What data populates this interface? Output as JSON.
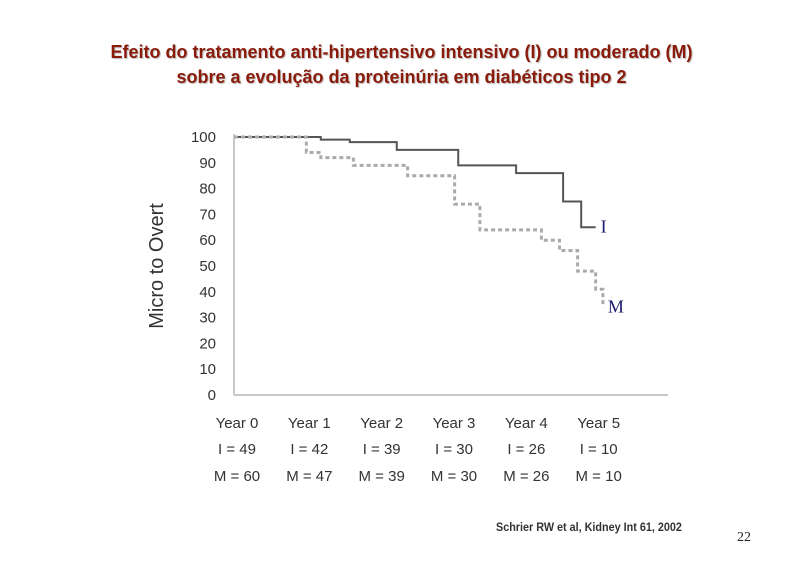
{
  "slide": {
    "title_line1": "Efeito do tratamento anti-hipertensivo intensivo (I) ou moderado (M)",
    "title_line2": "sobre a evolução da proteinúria em diabéticos tipo 2",
    "citation": "Schrier RW et al, Kidney Int 61, 2002",
    "page_number": "22"
  },
  "chart_data": {
    "type": "line",
    "title": "",
    "xlabel": "",
    "ylabel": "Micro to Overt",
    "ylim": [
      0,
      100
    ],
    "xlim": [
      0,
      6
    ],
    "yticks": [
      0,
      10,
      20,
      30,
      40,
      50,
      60,
      70,
      80,
      90,
      100
    ],
    "categories": [
      "Year 0",
      "Year 1",
      "Year 2",
      "Year 3",
      "Year 4",
      "Year 5"
    ],
    "risk_table": [
      {
        "group": "I",
        "counts": [
          "I = 49",
          "I = 42",
          "I = 39",
          "I = 30",
          "I = 26",
          "I = 10"
        ]
      },
      {
        "group": "M",
        "counts": [
          "M = 60",
          "M = 47",
          "M = 39",
          "M = 30",
          "M = 26",
          "M = 10"
        ]
      }
    ],
    "series": [
      {
        "name": "I",
        "style": "solid",
        "color": "#555555",
        "label_color": "#1a1a6e",
        "x": [
          0,
          1.2,
          1.6,
          2.25,
          3.1,
          3.9,
          4.55,
          4.8,
          5.0
        ],
        "y": [
          100,
          99,
          98,
          95,
          89,
          86,
          75,
          65,
          65
        ]
      },
      {
        "name": "M",
        "style": "dashed",
        "color": "#aaaaaa",
        "label_color": "#1a1a6e",
        "x": [
          0,
          1.0,
          1.2,
          1.65,
          2.4,
          3.05,
          3.4,
          4.25,
          4.5,
          4.75,
          5.0,
          5.1
        ],
        "y": [
          100,
          94,
          92,
          89,
          85,
          74,
          64,
          60,
          56,
          48,
          41,
          34
        ]
      }
    ]
  }
}
